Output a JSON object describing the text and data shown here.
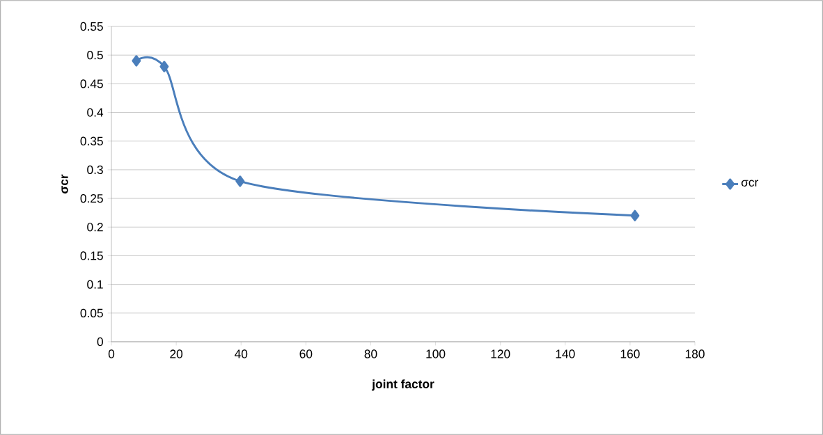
{
  "chart_data": {
    "type": "line",
    "xlabel": "joint factor",
    "ylabel": "σcr",
    "x": [
      7.7,
      16.3,
      39.7,
      161.5
    ],
    "series": [
      {
        "name": "σcr",
        "color": "#4a7ebb",
        "values": [
          0.49,
          0.48,
          0.28,
          0.22
        ]
      }
    ],
    "xlim": [
      0,
      180
    ],
    "xticks": [
      0,
      20,
      40,
      60,
      80,
      100,
      120,
      140,
      160,
      180
    ],
    "ylim": [
      0,
      0.55
    ],
    "yticks": [
      0,
      0.05,
      0.1,
      0.15,
      0.2,
      0.25,
      0.3,
      0.35,
      0.4,
      0.45,
      0.5,
      0.55
    ],
    "grid": "y",
    "legend": "right",
    "marker": "diamond",
    "line_style": "solid"
  }
}
